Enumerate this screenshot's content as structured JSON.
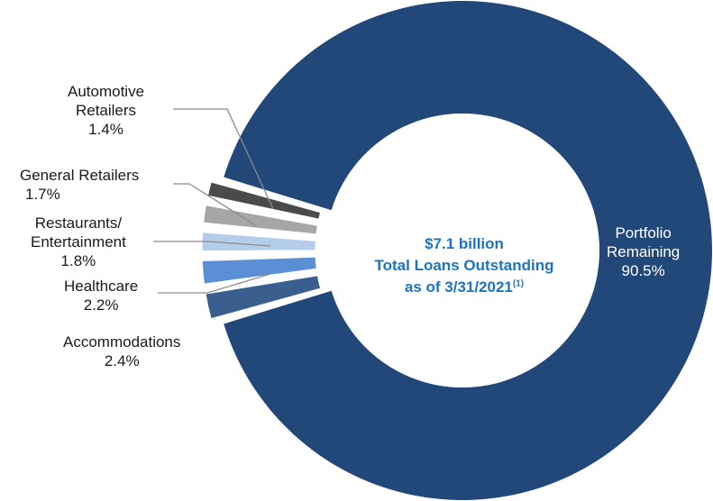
{
  "chart_data": {
    "type": "pie",
    "title": "",
    "center_text": {
      "amount": "$7.1 billion",
      "line2": "Total Loans Outstanding",
      "line3": "as of 3/31/2021",
      "footnote": "(1)"
    },
    "slices": [
      {
        "id": "portfolio",
        "label": "Portfolio Remaining",
        "label_lines": [
          "Portfolio",
          "Remaining"
        ],
        "value": 90.5,
        "value_text": "90.5%",
        "color": "#22487a",
        "exploded": false
      },
      {
        "id": "automotive",
        "label": "Automotive Retailers",
        "label_lines": [
          "Automotive",
          "Retailers"
        ],
        "value": 1.4,
        "value_text": "1.4%",
        "color": "#4a4a4a",
        "exploded": true
      },
      {
        "id": "general",
        "label": "General Retailers",
        "label_lines": [
          "General Retailers"
        ],
        "value": 1.7,
        "value_text": "1.7%",
        "color": "#a6a6a6",
        "exploded": true
      },
      {
        "id": "restaurants",
        "label": "Restaurants/ Entertainment",
        "label_lines": [
          "Restaurants/",
          "Entertainment"
        ],
        "value": 1.8,
        "value_text": "1.8%",
        "color": "#b4cde8",
        "exploded": true
      },
      {
        "id": "healthcare",
        "label": "Healthcare",
        "label_lines": [
          "Healthcare"
        ],
        "value": 2.2,
        "value_text": "2.2%",
        "color": "#5a8fd6",
        "exploded": true
      },
      {
        "id": "accommodations",
        "label": "Accommodations",
        "label_lines": [
          "Accommodations"
        ],
        "value": 2.4,
        "value_text": "2.4%",
        "color": "#3a5f8f",
        "exploded": true
      }
    ]
  }
}
